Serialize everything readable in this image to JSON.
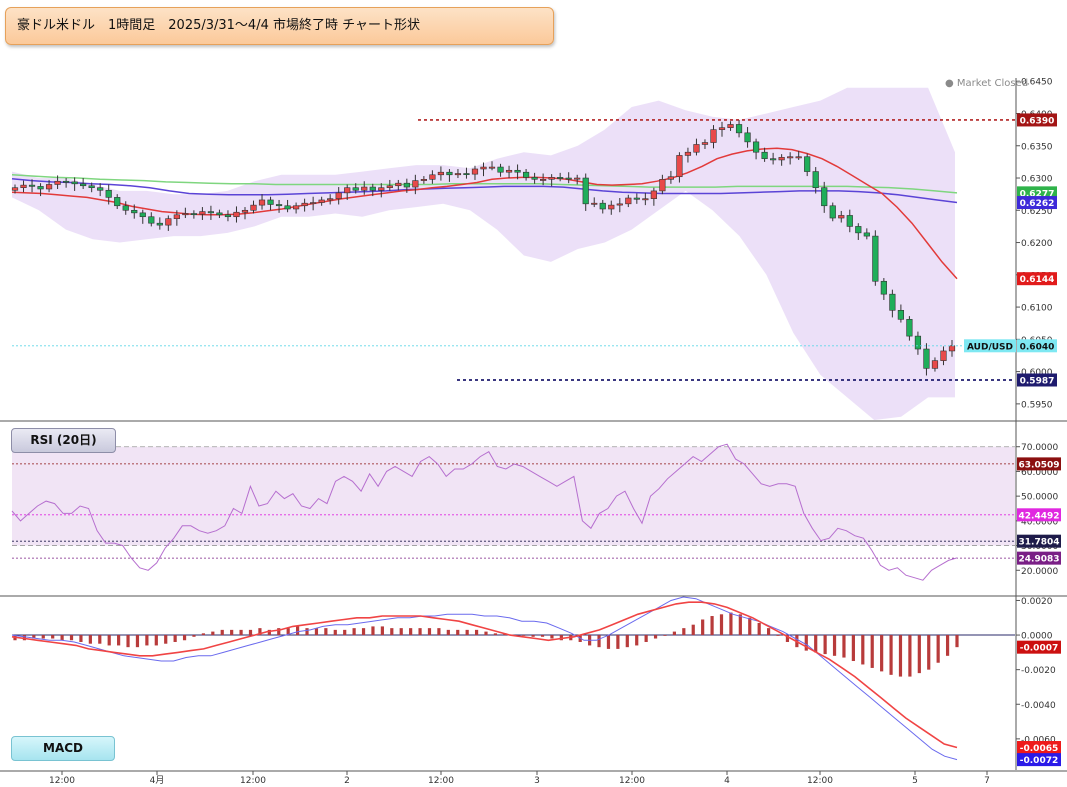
{
  "title": "豪ドル米ドル　1時間足　2025/3/31～4/4 市場終了時 チャート形状",
  "market_status": "Market Closed",
  "colors": {
    "candle_up": "#e84a4a",
    "candle_down": "#1fae5a",
    "ma_short": "#e23a3a",
    "ma_mid": "#5b44d6",
    "ma_long": "#7fd67f",
    "band_fill": "#dcc7f2",
    "rsi_line": "#b66fcf",
    "macd_line": "#6a6aee",
    "signal_line": "#f04444",
    "hist": "#b83b3b",
    "resistance_line": "#b22222",
    "support_line": "#1e1b6e"
  },
  "chart_data": [
    {
      "type": "candlestick",
      "symbol": "AUD/USD",
      "ylim": [
        0.5925,
        0.6455
      ],
      "yticks": [
        "0.5950",
        "0.6000",
        "0.6050",
        "0.6100",
        "0.6150",
        "0.6200",
        "0.6250",
        "0.6300",
        "0.6350",
        "0.6400",
        "0.6450"
      ],
      "x_tick_labels": [
        "12:00",
        "4月",
        "12:00",
        "2",
        "12:00",
        "3",
        "12:00",
        "4",
        "12:00",
        "5",
        "7"
      ],
      "last_price": 0.604,
      "last_price_label": "AUD/USD",
      "price_tags": [
        {
          "label": "0.6390",
          "value": 0.639,
          "color": "#a31515"
        },
        {
          "label": "0.6277",
          "value": 0.6277,
          "color": "#2fb34a"
        },
        {
          "label": "0.6262",
          "value": 0.6262,
          "color": "#3d2ad9"
        },
        {
          "label": "0.6144",
          "value": 0.6144,
          "color": "#e11b1b"
        },
        {
          "label": "0.6040",
          "value": 0.604,
          "color": "#7ee8f2"
        },
        {
          "label": "0.5987",
          "value": 0.5987,
          "color": "#1e1b6e"
        }
      ],
      "resistance": 0.639,
      "support": 0.5987,
      "ma_short_end": 0.6144,
      "ma_mid_end": 0.6262,
      "ma_long_end": 0.6277
    },
    {
      "type": "line",
      "name": "RSI (20日)",
      "ylim": [
        10,
        80
      ],
      "yticks": [
        "20.0000",
        "30.0000",
        "40.0000",
        "50.0000",
        "60.0000",
        "70.0000"
      ],
      "levels": [
        70,
        30
      ],
      "tags": [
        {
          "label": "63.0509",
          "value": 63.05,
          "color": "#8b1010"
        },
        {
          "label": "42.4492",
          "value": 42.45,
          "color": "#e028e0"
        },
        {
          "label": "31.7804",
          "value": 31.78,
          "color": "#1e1b4a"
        },
        {
          "label": "24.9083",
          "value": 24.91,
          "color": "#7a1f86"
        }
      ],
      "values": [
        44,
        40,
        43,
        46,
        48,
        47,
        43,
        43,
        46,
        45,
        36,
        31,
        31,
        30,
        25,
        21,
        20,
        23,
        29,
        33,
        38,
        38,
        36,
        35,
        36,
        38,
        45,
        43,
        54,
        46,
        47,
        52,
        49,
        51,
        46,
        45,
        49,
        47,
        56,
        58,
        56,
        52,
        59,
        54,
        60,
        62,
        60,
        58,
        64,
        66,
        63,
        58,
        61,
        61,
        63,
        66,
        68,
        62,
        61,
        63,
        62,
        60,
        58,
        56,
        54,
        56,
        58,
        40,
        37,
        43,
        45,
        50,
        52,
        45,
        39,
        50,
        53,
        57,
        60,
        63,
        66,
        64,
        67,
        70,
        71,
        65,
        63,
        59,
        55,
        54,
        55,
        55,
        54,
        43,
        37,
        32,
        33,
        37,
        36,
        34,
        33,
        28,
        22,
        20,
        21,
        18,
        17,
        16,
        20,
        22,
        24,
        25
      ]
    },
    {
      "type": "bar",
      "name": "MACD",
      "ylim": [
        -0.0078,
        0.0022
      ],
      "yticks": [
        "0.0020",
        "0.0000",
        "-0.0020",
        "-0.0040",
        "-0.0060"
      ],
      "tags": [
        {
          "label": "-0.0007",
          "value": -0.0007,
          "color": "#cc1010"
        },
        {
          "label": "-0.0065",
          "value": -0.0065,
          "color": "#ee1a1a"
        },
        {
          "label": "-0.0072",
          "value": -0.0072,
          "color": "#2a1ae8"
        }
      ],
      "histogram": [
        -0.0003,
        -0.0003,
        -0.0002,
        -0.0002,
        -0.0002,
        -0.0003,
        -0.0003,
        -0.0004,
        -0.0005,
        -0.0005,
        -0.0006,
        -0.0006,
        -0.0007,
        -0.0007,
        -0.0006,
        -0.0006,
        -0.0005,
        -0.0004,
        -0.0003,
        -0.0001,
        0.0001,
        0.0002,
        0.0003,
        0.0003,
        0.0003,
        0.0003,
        0.0004,
        0.0003,
        0.0004,
        0.0004,
        0.0005,
        0.0004,
        0.0004,
        0.0004,
        0.0003,
        0.0003,
        0.0004,
        0.0004,
        0.0005,
        0.0005,
        0.0004,
        0.0004,
        0.0004,
        0.0004,
        0.0004,
        0.0004,
        0.0003,
        0.0003,
        0.0003,
        0.0003,
        0.0002,
        0.0001,
        0.0001,
        0.0,
        0.0,
        -0.0001,
        -0.0001,
        -0.0002,
        -0.0003,
        -0.0003,
        -0.0004,
        -0.0006,
        -0.0007,
        -0.0008,
        -0.0008,
        -0.0007,
        -0.0006,
        -0.0004,
        -0.0002,
        0.0,
        0.0002,
        0.0004,
        0.0006,
        0.0009,
        0.0011,
        0.0012,
        0.0013,
        0.0012,
        0.001,
        0.0007,
        0.0004,
        0.0,
        -0.0004,
        -0.0007,
        -0.0009,
        -0.001,
        -0.0011,
        -0.0012,
        -0.0013,
        -0.0015,
        -0.0017,
        -0.0019,
        -0.0021,
        -0.0023,
        -0.0024,
        -0.0024,
        -0.0022,
        -0.002,
        -0.0016,
        -0.0012,
        -0.0007
      ],
      "macd": [
        0.0,
        -0.0001,
        -0.0002,
        -0.0003,
        -0.0003,
        -0.0004,
        -0.0006,
        -0.0008,
        -0.001,
        -0.0012,
        -0.0013,
        -0.0014,
        -0.0015,
        -0.0015,
        -0.0013,
        -0.0012,
        -0.0012,
        -0.001,
        -0.0008,
        -0.0006,
        -0.0004,
        -0.0002,
        0.0,
        0.0002,
        0.0003,
        0.0005,
        0.0006,
        0.0006,
        0.0007,
        0.0008,
        0.0009,
        0.001,
        0.001,
        0.0011,
        0.0011,
        0.0012,
        0.0012,
        0.0012,
        0.0011,
        0.0011,
        0.001,
        0.0008,
        0.0008,
        0.0007,
        0.0004,
        0.0001,
        -0.0003,
        -0.0003,
        0.0,
        0.0004,
        0.0008,
        0.0012,
        0.0016,
        0.002,
        0.0022,
        0.0021,
        0.0018,
        0.0015,
        0.0012,
        0.001,
        0.0008,
        0.0005,
        0.0002,
        -0.0002,
        -0.0006,
        -0.0012,
        -0.0018,
        -0.0024,
        -0.003,
        -0.0036,
        -0.0042,
        -0.0048,
        -0.0054,
        -0.006,
        -0.0066,
        -0.007,
        -0.0072
      ],
      "signal": [
        -0.0001,
        -0.0002,
        -0.0003,
        -0.0004,
        -0.0005,
        -0.0006,
        -0.0008,
        -0.0009,
        -0.001,
        -0.0011,
        -0.0012,
        -0.0012,
        -0.0011,
        -0.001,
        -0.0009,
        -0.0008,
        -0.0006,
        -0.0004,
        -0.0002,
        0.0,
        0.0002,
        0.0003,
        0.0005,
        0.0006,
        0.0007,
        0.0008,
        0.0009,
        0.001,
        0.001,
        0.0011,
        0.0011,
        0.0011,
        0.0011,
        0.001,
        0.0009,
        0.0008,
        0.0006,
        0.0004,
        0.0002,
        0.0,
        -0.0001,
        -0.0002,
        -0.0003,
        -0.0002,
        -0.0001,
        0.0001,
        0.0003,
        0.0006,
        0.0009,
        0.0012,
        0.0014,
        0.0016,
        0.0018,
        0.0019,
        0.0019,
        0.0018,
        0.0016,
        0.0013,
        0.001,
        0.0006,
        0.0002,
        -0.0002,
        -0.0006,
        -0.001,
        -0.0014,
        -0.0019,
        -0.0024,
        -0.003,
        -0.0036,
        -0.0042,
        -0.0048,
        -0.0053,
        -0.0058,
        -0.0063,
        -0.0065
      ]
    }
  ],
  "price_series": {
    "closes": [
      0.6285,
      0.6289,
      0.6287,
      0.6283,
      0.629,
      0.6295,
      0.6294,
      0.6291,
      0.6288,
      0.6285,
      0.6281,
      0.627,
      0.6257,
      0.625,
      0.6246,
      0.624,
      0.623,
      0.6227,
      0.6237,
      0.6243,
      0.6245,
      0.6244,
      0.6248,
      0.6246,
      0.6243,
      0.624,
      0.6247,
      0.625,
      0.6258,
      0.6266,
      0.6259,
      0.6257,
      0.6252,
      0.6257,
      0.6261,
      0.6262,
      0.6266,
      0.6268,
      0.6277,
      0.6285,
      0.6281,
      0.6286,
      0.6281,
      0.6285,
      0.6288,
      0.6292,
      0.6286,
      0.6296,
      0.6298,
      0.6305,
      0.6309,
      0.6305,
      0.6307,
      0.6306,
      0.6314,
      0.6317,
      0.6317,
      0.6309,
      0.6312,
      0.6309,
      0.6301,
      0.6298,
      0.6298,
      0.6301,
      0.63,
      0.6299,
      0.63,
      0.626,
      0.6261,
      0.6252,
      0.6258,
      0.626,
      0.6269,
      0.6267,
      0.6268,
      0.628,
      0.6298,
      0.6302,
      0.6335,
      0.634,
      0.6352,
      0.6355,
      0.6375,
      0.6378,
      0.6383,
      0.637,
      0.6356,
      0.634,
      0.633,
      0.6328,
      0.6332,
      0.6333,
      0.6333,
      0.631,
      0.6285,
      0.6257,
      0.6238,
      0.6242,
      0.6225,
      0.6215,
      0.621,
      0.614,
      0.612,
      0.6095,
      0.6081,
      0.6055,
      0.6035,
      0.6005,
      0.6017,
      0.6032,
      0.604
    ],
    "ma_short": [
      0.6278,
      0.6277,
      0.6276,
      0.6274,
      0.6272,
      0.627,
      0.6266,
      0.6262,
      0.6256,
      0.6252,
      0.6248,
      0.6246,
      0.6244,
      0.6243,
      0.6243,
      0.6244,
      0.6246,
      0.6249,
      0.6252,
      0.6256,
      0.626,
      0.6264,
      0.6268,
      0.6271,
      0.6274,
      0.6277,
      0.628,
      0.6282,
      0.6285,
      0.6287,
      0.629,
      0.6293,
      0.6298,
      0.63,
      0.6301,
      0.6301,
      0.63,
      0.6298,
      0.6294,
      0.629,
      0.6289,
      0.629,
      0.6291,
      0.6295,
      0.63,
      0.6308,
      0.6318,
      0.633,
      0.6337,
      0.6342,
      0.6345,
      0.6346,
      0.6344,
      0.6338,
      0.633,
      0.6318,
      0.6304,
      0.629,
      0.6276,
      0.6255,
      0.623,
      0.62,
      0.617,
      0.6144
    ],
    "ma_mid": [
      0.6299,
      0.6296,
      0.6294,
      0.6293,
      0.6291,
      0.629,
      0.6288,
      0.6285,
      0.628,
      0.6276,
      0.6275,
      0.6274,
      0.6274,
      0.6274,
      0.6275,
      0.6276,
      0.6277,
      0.6278,
      0.6279,
      0.628,
      0.6282,
      0.6283,
      0.6284,
      0.6285,
      0.6286,
      0.6287,
      0.6287,
      0.6287,
      0.6286,
      0.6283,
      0.628,
      0.6278,
      0.6277,
      0.6276,
      0.6276,
      0.6276,
      0.6276,
      0.6277,
      0.6278,
      0.6279,
      0.628,
      0.628,
      0.628,
      0.6279,
      0.6277,
      0.6274,
      0.627,
      0.6266,
      0.6262
    ],
    "ma_long": [
      0.6305,
      0.6303,
      0.6301,
      0.63,
      0.6298,
      0.6297,
      0.6296,
      0.6294,
      0.6293,
      0.6292,
      0.6291,
      0.6291,
      0.629,
      0.629,
      0.629,
      0.629,
      0.629,
      0.629,
      0.629,
      0.629,
      0.6291,
      0.6291,
      0.6291,
      0.6291,
      0.6291,
      0.629,
      0.6289,
      0.6288,
      0.6287,
      0.6286,
      0.6286,
      0.6286,
      0.6286,
      0.6287,
      0.6287,
      0.6287,
      0.6287,
      0.6287,
      0.6287,
      0.6286,
      0.6285,
      0.6283,
      0.628,
      0.6277
    ],
    "band_upper": [
      0.631,
      0.63,
      0.63,
      0.629,
      0.628,
      0.628,
      0.6275,
      0.6275,
      0.628,
      0.6295,
      0.6305,
      0.6305,
      0.6305,
      0.631,
      0.6315,
      0.632,
      0.632,
      0.6315,
      0.633,
      0.634,
      0.6335,
      0.635,
      0.6375,
      0.641,
      0.642,
      0.6405,
      0.6395,
      0.639,
      0.64,
      0.641,
      0.642,
      0.644,
      0.644,
      0.644,
      0.644,
      0.634
    ],
    "band_lower": [
      0.627,
      0.625,
      0.622,
      0.6205,
      0.62,
      0.6205,
      0.621,
      0.621,
      0.6215,
      0.6225,
      0.624,
      0.624,
      0.6245,
      0.624,
      0.625,
      0.6255,
      0.626,
      0.625,
      0.622,
      0.618,
      0.617,
      0.619,
      0.62,
      0.622,
      0.625,
      0.628,
      0.625,
      0.621,
      0.615,
      0.606,
      0.5995,
      0.596,
      0.5925,
      0.593,
      0.596,
      0.596
    ]
  }
}
